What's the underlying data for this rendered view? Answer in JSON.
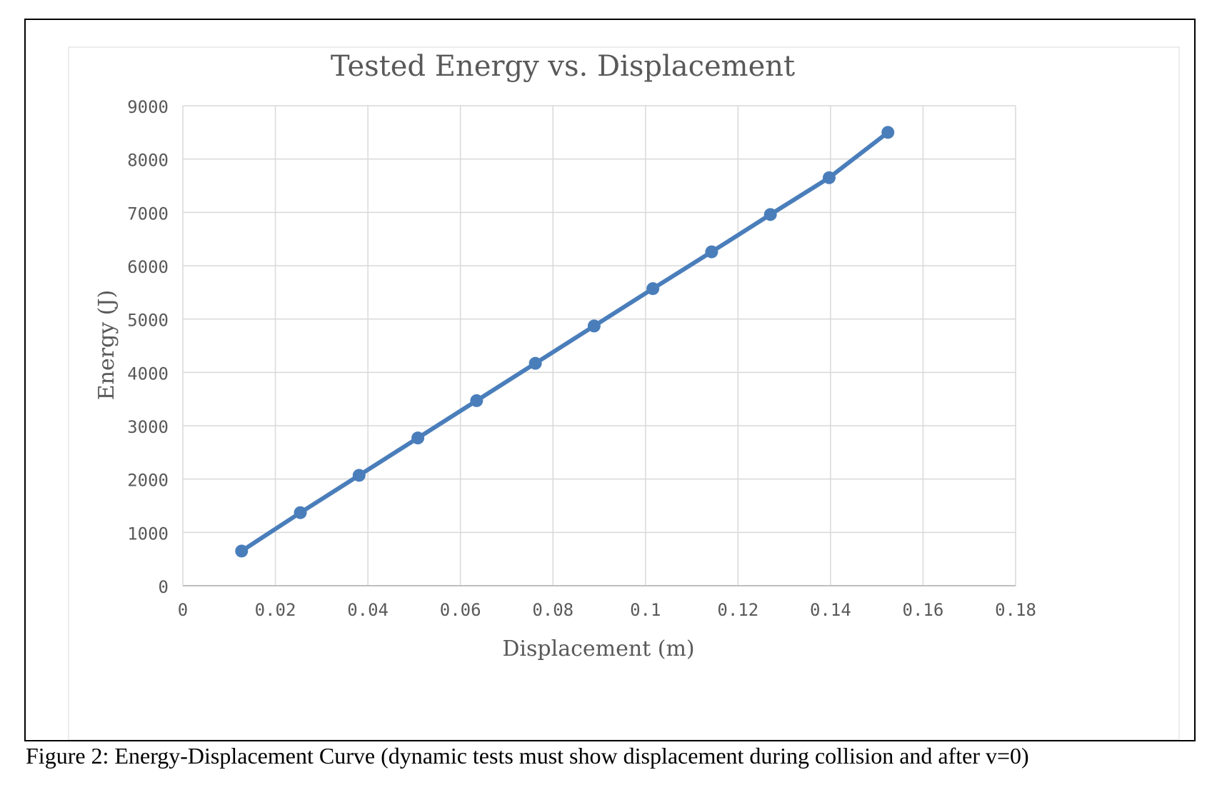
{
  "caption": "Figure 2: Energy-Displacement Curve (dynamic tests must show displacement during collision and after v=0)",
  "chart_data": {
    "type": "line",
    "title": "Tested Energy vs. Displacement",
    "xlabel": "Displacement (m)",
    "ylabel": "Energy (J)",
    "xlim": [
      0,
      0.18
    ],
    "ylim": [
      0,
      9000
    ],
    "xticks": [
      "0",
      "0.02",
      "0.04",
      "0.06",
      "0.08",
      "0.1",
      "0.12",
      "0.14",
      "0.16",
      "0.18"
    ],
    "yticks": [
      "0",
      "1000",
      "2000",
      "3000",
      "4000",
      "5000",
      "6000",
      "7000",
      "8000",
      "9000"
    ],
    "grid": true,
    "legend": "none",
    "series": [
      {
        "color": "#4a7ebb",
        "x": [
          0.0127,
          0.0254,
          0.0381,
          0.0508,
          0.0635,
          0.0762,
          0.0889,
          0.1016,
          0.1143,
          0.127,
          0.1397,
          0.1524
        ],
        "y": [
          650,
          1370,
          2070,
          2770,
          3470,
          4170,
          4870,
          5570,
          6260,
          6960,
          7650,
          8500
        ]
      }
    ]
  }
}
